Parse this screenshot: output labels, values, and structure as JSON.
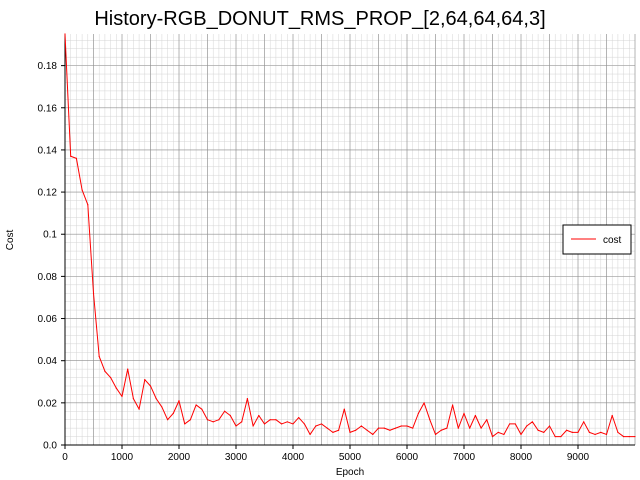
{
  "chart_data": {
    "type": "line",
    "title": "History-RGB_DONUT_RMS_PROP_[2,64,64,64,3]",
    "xlabel": "Epoch",
    "ylabel": "Cost",
    "xlim": [
      0,
      10000
    ],
    "ylim": [
      0,
      0.195
    ],
    "x_ticks": [
      0,
      1000,
      2000,
      3000,
      4000,
      5000,
      6000,
      7000,
      8000,
      9000
    ],
    "x_tick_labels": [
      "0",
      "1000",
      "2000",
      "3000",
      "4000",
      "5000",
      "6000",
      "7000",
      "8000",
      "9000"
    ],
    "y_ticks": [
      0.0,
      0.02,
      0.04,
      0.06,
      0.08,
      0.1,
      0.12,
      0.14,
      0.16,
      0.18
    ],
    "y_tick_labels": [
      "0.0",
      "0.02",
      "0.04",
      "0.06",
      "0.08",
      "0.1",
      "0.12",
      "0.14",
      "0.16",
      "0.18"
    ],
    "grid": true,
    "legend_position": "right",
    "series": [
      {
        "name": "cost",
        "color": "#ff0000",
        "x": [
          0,
          100,
          200,
          300,
          400,
          500,
          600,
          700,
          800,
          900,
          1000,
          1100,
          1200,
          1300,
          1400,
          1500,
          1600,
          1700,
          1800,
          1900,
          2000,
          2100,
          2200,
          2300,
          2400,
          2500,
          2600,
          2700,
          2800,
          2900,
          3000,
          3100,
          3200,
          3300,
          3400,
          3500,
          3600,
          3700,
          3800,
          3900,
          4000,
          4100,
          4200,
          4300,
          4400,
          4500,
          4600,
          4700,
          4800,
          4900,
          5000,
          5100,
          5200,
          5300,
          5400,
          5500,
          5600,
          5700,
          5800,
          5900,
          6000,
          6100,
          6200,
          6300,
          6400,
          6500,
          6600,
          6700,
          6800,
          6900,
          7000,
          7100,
          7200,
          7300,
          7400,
          7500,
          7600,
          7700,
          7800,
          7900,
          8000,
          8100,
          8200,
          8300,
          8400,
          8500,
          8600,
          8700,
          8800,
          8900,
          9000,
          9100,
          9200,
          9300,
          9400,
          9500,
          9600,
          9700,
          9800,
          9900,
          10000
        ],
        "y": [
          0.195,
          0.137,
          0.136,
          0.121,
          0.114,
          0.072,
          0.042,
          0.035,
          0.032,
          0.027,
          0.023,
          0.036,
          0.022,
          0.017,
          0.031,
          0.028,
          0.022,
          0.018,
          0.012,
          0.015,
          0.021,
          0.01,
          0.012,
          0.019,
          0.017,
          0.012,
          0.011,
          0.012,
          0.016,
          0.014,
          0.009,
          0.011,
          0.022,
          0.009,
          0.014,
          0.01,
          0.012,
          0.012,
          0.01,
          0.011,
          0.01,
          0.013,
          0.01,
          0.005,
          0.009,
          0.01,
          0.008,
          0.006,
          0.007,
          0.017,
          0.006,
          0.007,
          0.009,
          0.007,
          0.005,
          0.008,
          0.008,
          0.007,
          0.008,
          0.009,
          0.009,
          0.008,
          0.015,
          0.02,
          0.012,
          0.005,
          0.007,
          0.008,
          0.019,
          0.008,
          0.015,
          0.008,
          0.014,
          0.008,
          0.012,
          0.004,
          0.006,
          0.005,
          0.01,
          0.01,
          0.005,
          0.009,
          0.011,
          0.007,
          0.006,
          0.009,
          0.004,
          0.004,
          0.007,
          0.006,
          0.006,
          0.011,
          0.006,
          0.005,
          0.006,
          0.005,
          0.014,
          0.006,
          0.004,
          0.004,
          0.004
        ]
      }
    ]
  }
}
